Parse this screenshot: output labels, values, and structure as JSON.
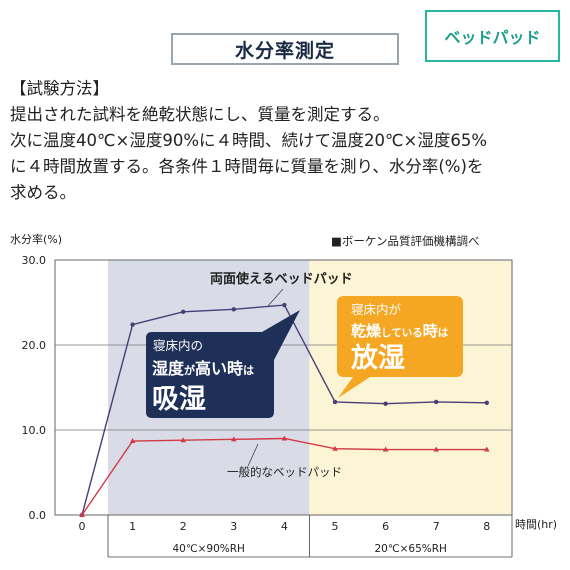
{
  "badge": "ベッドパッド",
  "page_title": "水分率測定",
  "method": {
    "heading": "【試験方法】",
    "lines": [
      "提出された試料を絶乾状態にし、質量を測定する。",
      "次に温度40℃×湿度90%に４時間、続けて温度20℃×湿度65%",
      "に４時間放置する。各条件１時間毎に質量を測り、水分率(%)を",
      "求める。"
    ]
  },
  "colors": {
    "humid_band": "#d9dce7",
    "dry_band": "#fbf5d5",
    "series_bed_pad": "#4a3d78",
    "series_general": "#d23a4a",
    "callout_navy": "#1e2f58",
    "callout_orange": "#f5a623",
    "badge_teal": "#1a9e8c"
  },
  "chart_data": {
    "type": "line",
    "ylabel": "水分率(%)",
    "xlabel": "時間(hr)",
    "source_note": "■ボーケン品質評価機構調べ",
    "x": [
      0,
      1,
      2,
      3,
      4,
      5,
      6,
      7,
      8
    ],
    "xticks": [
      "0",
      "1",
      "2",
      "3",
      "4",
      "5",
      "6",
      "7",
      "8"
    ],
    "ylim": [
      0,
      30
    ],
    "yticks": [
      "0.0",
      "10.0",
      "20.0",
      "30.0"
    ],
    "grid": "horizontal",
    "series": [
      {
        "name": "両面使えるベッドパッド",
        "values": [
          0,
          22.4,
          23.9,
          24.2,
          24.7,
          13.3,
          13.1,
          13.3,
          13.2
        ]
      },
      {
        "name": "一般的なベッドパッド",
        "values": [
          0,
          8.7,
          8.8,
          8.9,
          9.0,
          7.8,
          7.7,
          7.7,
          7.7
        ]
      }
    ],
    "phases": [
      {
        "label": "40℃×90%RH",
        "from": 1,
        "to": 4
      },
      {
        "label": "20℃×65%RH",
        "from": 4,
        "to": 8
      }
    ],
    "callouts": {
      "absorb": {
        "line1": "寝床内の",
        "line2a": "湿度",
        "line2b": "が",
        "line2c": "高い時",
        "line2d": "は",
        "line3": "吸湿"
      },
      "release": {
        "line1": "寝床内が",
        "line2a": "乾燥",
        "line2b": "している",
        "line2c": "時",
        "line2d": "は",
        "line3": "放湿"
      }
    }
  }
}
